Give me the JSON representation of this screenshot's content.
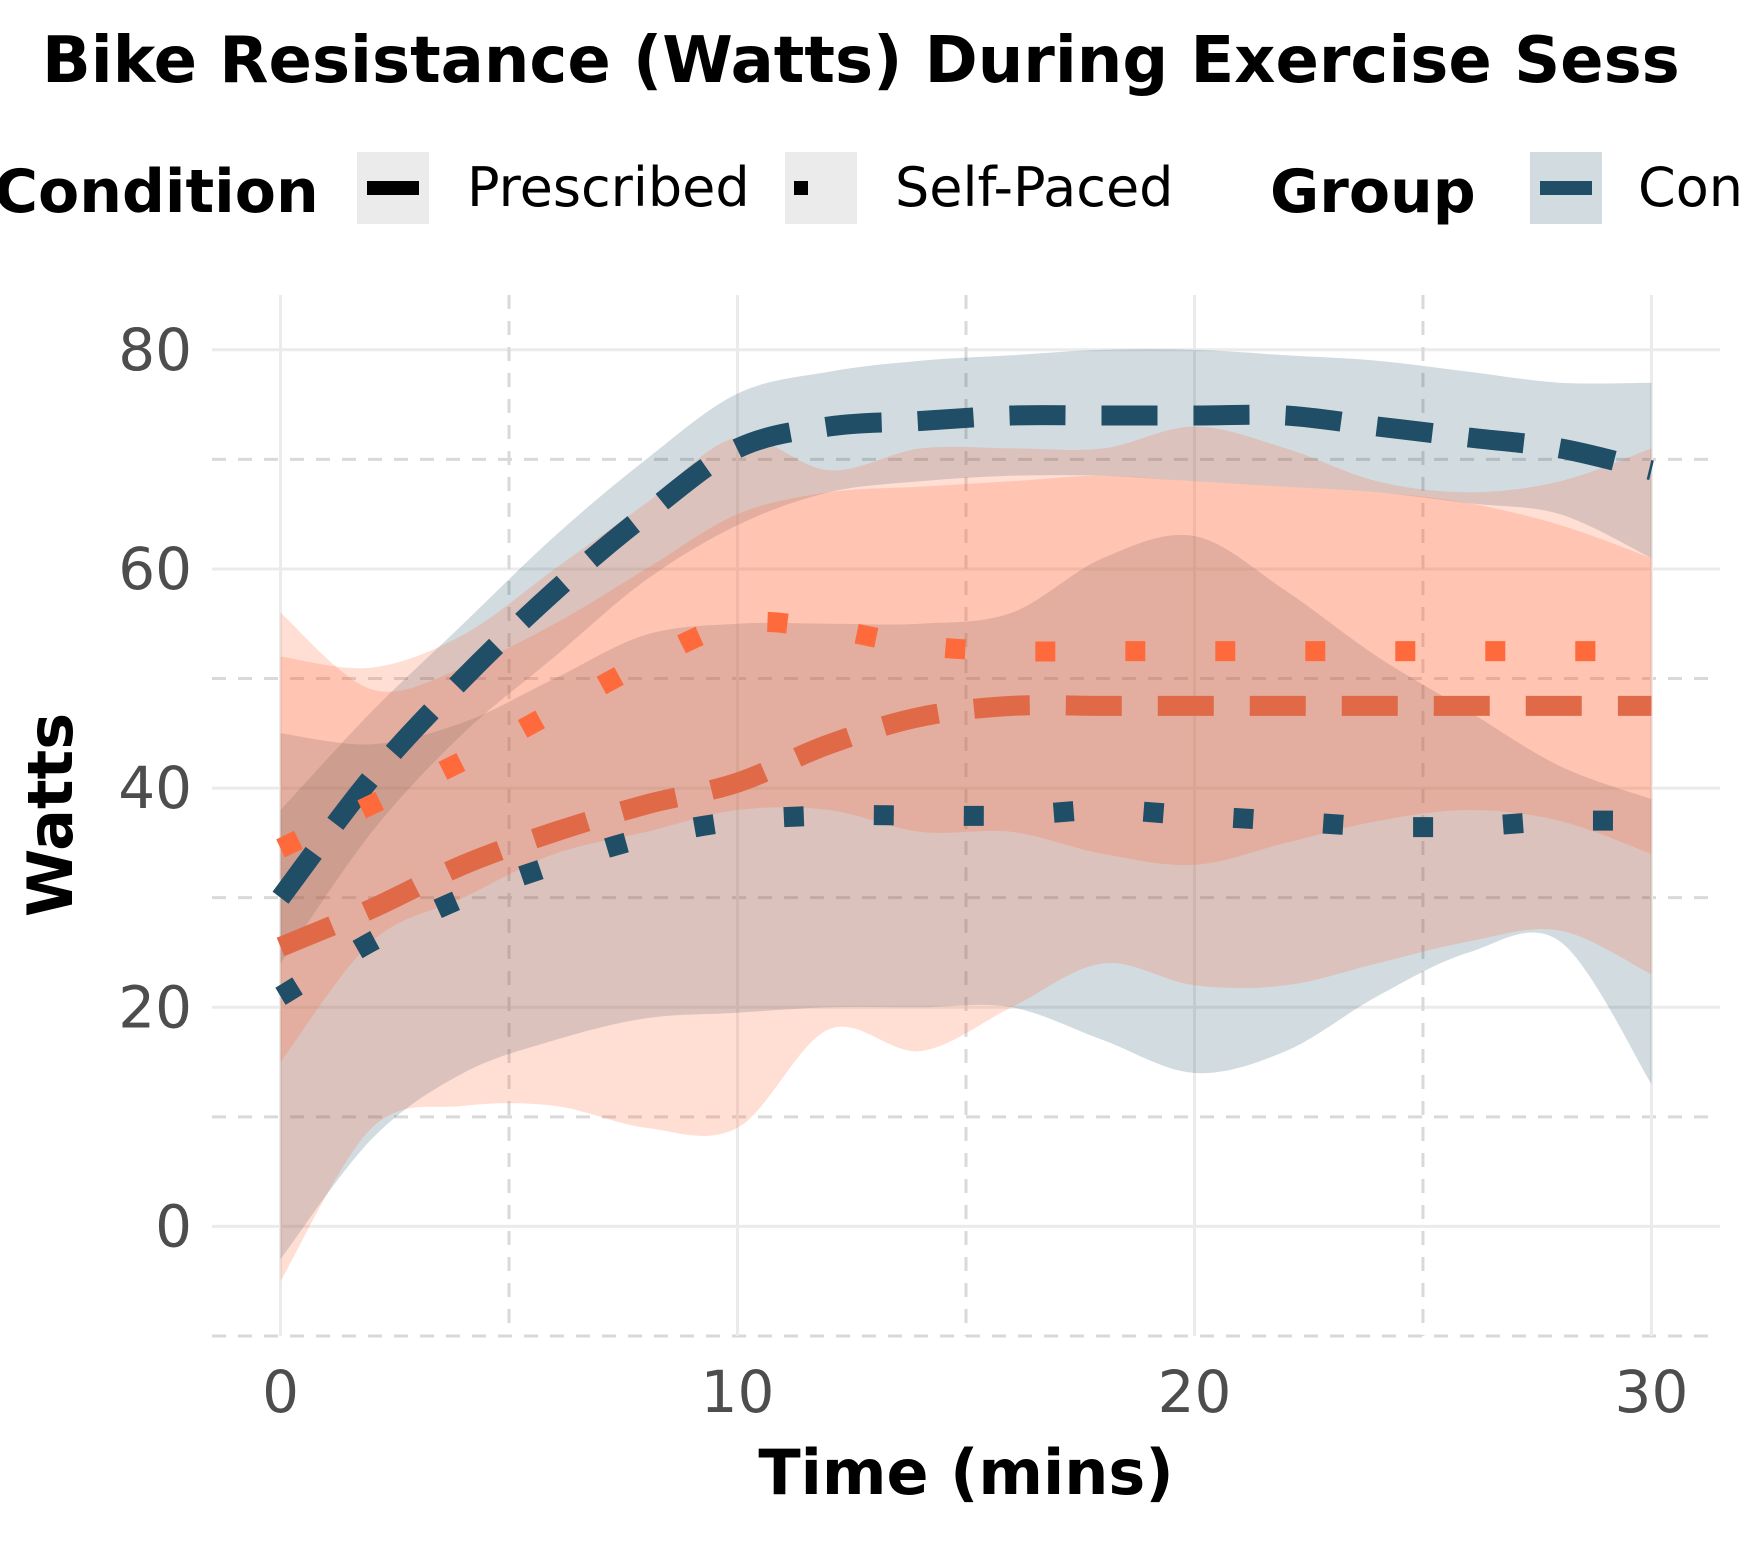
{
  "chart_data": {
    "type": "line",
    "title": "Bike Resistance (Watts) During Exercise Sess",
    "xlabel": "Time (mins)",
    "ylabel": "Watts",
    "xlim": [
      -1.5,
      31.5
    ],
    "ylim": [
      -10,
      85
    ],
    "x_ticks": [
      0,
      10,
      20,
      30
    ],
    "y_ticks": [
      0,
      20,
      40,
      60,
      80
    ],
    "grid": true,
    "legend": {
      "position": "top",
      "condition_title": "Condition",
      "condition_entries": [
        "Prescribed",
        "Self-Paced"
      ],
      "group_title": "Group",
      "group_entries": [
        "Con"
      ]
    },
    "colors": {
      "group_blue": "#1f4e66",
      "group_orange": "#ff6a3d",
      "grid": "#ebebeb",
      "legend_key_bg": "#ebebeb"
    },
    "series": [
      {
        "group": "blue",
        "condition": "Prescribed",
        "x": [
          0,
          2,
          4,
          6,
          8,
          10,
          12,
          14,
          16,
          18,
          20,
          22,
          24,
          26,
          28,
          30
        ],
        "y": [
          30,
          41,
          50,
          58,
          65,
          71,
          73,
          73.5,
          74,
          74,
          74,
          74,
          73,
          72,
          71,
          69
        ],
        "band_upper": [
          38,
          47,
          55,
          63,
          70,
          76,
          78,
          79,
          79.5,
          80,
          80,
          79.5,
          79,
          78,
          77,
          77
        ],
        "band_lower": [
          24,
          36,
          45,
          52,
          59,
          64,
          67,
          68,
          68.5,
          68.5,
          68,
          67.5,
          67,
          66,
          65,
          61
        ]
      },
      {
        "group": "blue",
        "condition": "Self-Paced",
        "x": [
          0,
          2,
          4,
          6,
          8,
          10,
          12,
          14,
          16,
          18,
          20,
          22,
          24,
          26,
          28,
          30
        ],
        "y": [
          21,
          26,
          30,
          33,
          35.5,
          37,
          37.5,
          37.5,
          37.5,
          38,
          37.5,
          37,
          36.5,
          36.5,
          37,
          37
        ],
        "band_upper": [
          45,
          44,
          46,
          50,
          54,
          55,
          55,
          55,
          56,
          61,
          63,
          58,
          52,
          47,
          42,
          39
        ],
        "band_lower": [
          -3,
          8,
          14,
          17,
          19,
          19.5,
          20,
          20,
          20,
          17,
          14,
          16,
          21,
          25,
          26,
          13
        ]
      },
      {
        "group": "orange",
        "condition": "Prescribed",
        "x": [
          0,
          2,
          4,
          6,
          8,
          10,
          12,
          14,
          16,
          18,
          20,
          22,
          24,
          26,
          28,
          30
        ],
        "y": [
          25.5,
          29,
          33,
          36,
          38.5,
          40.5,
          44,
          46.5,
          47.5,
          47.5,
          47.5,
          47.5,
          47.5,
          47.5,
          47.5,
          47.5
        ],
        "band_upper": [
          52,
          51,
          54,
          60,
          66,
          72,
          69,
          71,
          71,
          71,
          73,
          71,
          68,
          67,
          68,
          71
        ],
        "band_lower": [
          -5,
          9,
          11,
          11,
          9,
          9,
          18,
          16,
          20,
          24,
          22,
          22,
          24,
          26,
          27,
          23
        ]
      },
      {
        "group": "orange",
        "condition": "Self-Paced",
        "x": [
          0,
          2,
          4,
          6,
          8,
          10,
          12,
          14,
          16,
          18,
          20,
          22,
          24,
          26,
          28,
          30
        ],
        "y": [
          34.5,
          38.5,
          42.5,
          47,
          51.5,
          55,
          54.5,
          53,
          52.5,
          52.5,
          52.5,
          52.5,
          52.5,
          52.5,
          52.5,
          52.5
        ],
        "band_upper": [
          56,
          49,
          51,
          55,
          60,
          65,
          67,
          67.5,
          68,
          68.5,
          68,
          67.5,
          67,
          66,
          64,
          61
        ],
        "band_lower": [
          15,
          26,
          30,
          34,
          36,
          38,
          38,
          36,
          36,
          34,
          33,
          35,
          37,
          38,
          37,
          34
        ]
      }
    ]
  }
}
